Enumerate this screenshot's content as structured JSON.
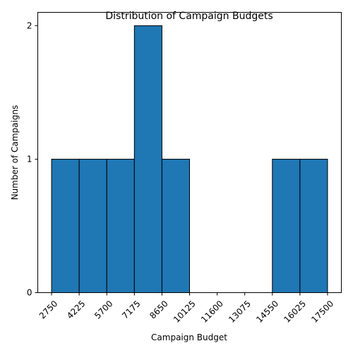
{
  "chart_data": {
    "type": "bar",
    "title": "Distribution of Campaign Budgets",
    "xlabel": "Campaign Budget",
    "ylabel": "Number of Campaigns",
    "bin_edges": [
      2750,
      4225,
      5700,
      7175,
      8650,
      10125,
      11600,
      13075,
      14550,
      16025,
      17500
    ],
    "values": [
      1,
      1,
      1,
      2,
      1,
      0,
      0,
      0,
      1,
      1
    ],
    "x_ticks": [
      "2750",
      "4225",
      "5700",
      "7175",
      "8650",
      "10125",
      "11600",
      "13075",
      "14550",
      "16025",
      "17500"
    ],
    "y_ticks": [
      "0",
      "1",
      "2"
    ],
    "xlim": [
      2012.5,
      18237.5
    ],
    "ylim": [
      0,
      2.1
    ],
    "grid": false,
    "colors": {
      "bar": "#1f77b4",
      "edge": "#000000"
    }
  }
}
